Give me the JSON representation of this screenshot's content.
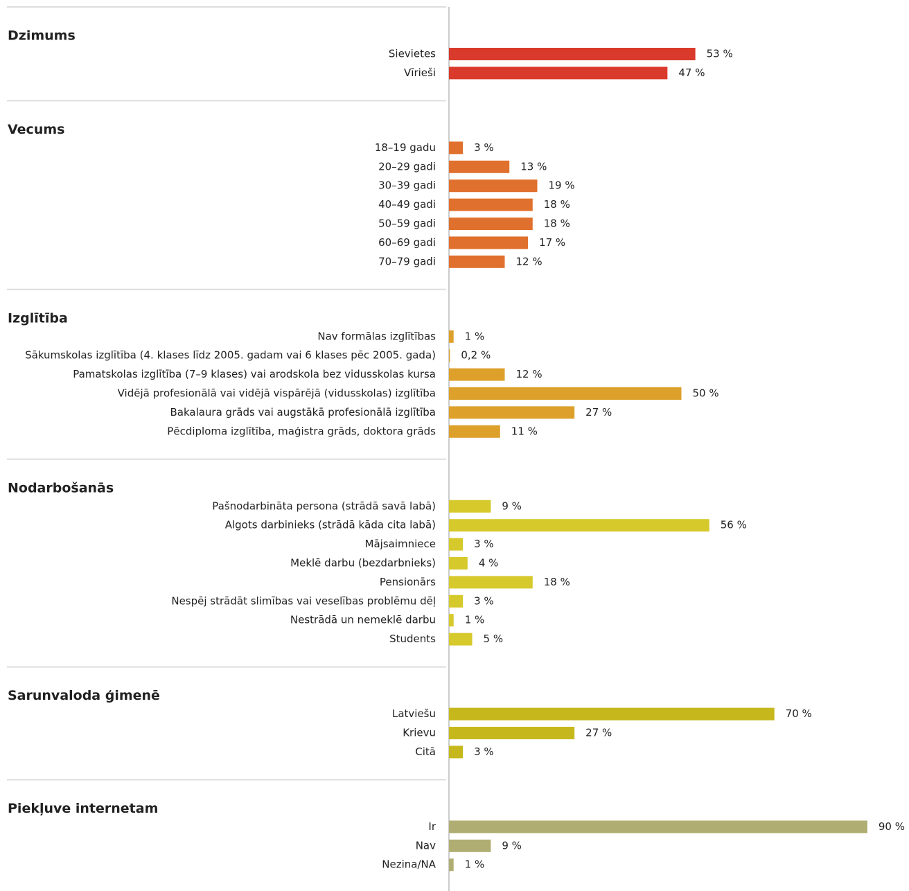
{
  "chart_data": [
    {
      "type": "bar",
      "title": "Dzimums",
      "color": "#d93a2b",
      "categories": [
        "Sievietes",
        "Vīrieši"
      ],
      "values": [
        53,
        47
      ],
      "value_labels": [
        "53 %",
        "47 %"
      ]
    },
    {
      "type": "bar",
      "title": "Vecums",
      "color": "#e0702d",
      "categories": [
        "18–19 gadu",
        "20–29 gadi",
        "30–39 gadi",
        "40–49 gadi",
        "50–59 gadi",
        "60–69 gadi",
        "70–79 gadi"
      ],
      "values": [
        3,
        13,
        19,
        18,
        18,
        17,
        12
      ],
      "value_labels": [
        "3 %",
        "13 %",
        "19 %",
        "18 %",
        "18 %",
        "17 %",
        "12 %"
      ]
    },
    {
      "type": "bar",
      "title": "Izglītība",
      "color": "#dca02b",
      "categories": [
        "Nav formālas izglītības",
        "Sākumskolas izglītība (4. klases līdz 2005. gadam vai 6 klases pēc 2005. gada)",
        "Pamatskolas izglītība (7–9 klases) vai arodskola bez vidusskolas kursa",
        "Vidējā profesionālā vai vidējā vispārējā (vidusskolas) izglītība",
        "Bakalaura grāds vai augstākā profesionālā izglītība",
        "Pēcdiploma izglītība, maģistra grāds, doktora grāds"
      ],
      "values": [
        1,
        0.2,
        12,
        50,
        27,
        11
      ],
      "value_labels": [
        "1 %",
        "0,2 %",
        "12 %",
        "50 %",
        "27 %",
        "11 %"
      ]
    },
    {
      "type": "bar",
      "title": "Nodarbošanās",
      "color": "#d6c92b",
      "categories": [
        "Pašnodarbināta persona (strādā savā labā)",
        "Algots darbinieks (strādā kāda cita labā)",
        "Mājsaimniece",
        "Meklē darbu (bezdarbnieks)",
        "Pensionārs",
        "Nespēj strādāt slimības vai veselības problēmu dēļ",
        "Nestrādā un nemeklē darbu",
        "Students"
      ],
      "values": [
        9,
        56,
        3,
        4,
        18,
        3,
        1,
        5
      ],
      "value_labels": [
        "9 %",
        "56 %",
        "3 %",
        "4 %",
        "18 %",
        "3 %",
        "1 %",
        "5 %"
      ]
    },
    {
      "type": "bar",
      "title": "Sarunvaloda ģimenē",
      "color": "#c6b81c",
      "categories": [
        "Latviešu",
        "Krievu",
        "Citā"
      ],
      "values": [
        70,
        27,
        3
      ],
      "value_labels": [
        "70 %",
        "27 %",
        "3 %"
      ]
    },
    {
      "type": "bar",
      "title": "Piekļuve internetam",
      "color": "#b0ad72",
      "categories": [
        "Ir",
        "Nav",
        "Nezina/NA"
      ],
      "values": [
        90,
        9,
        1
      ],
      "value_labels": [
        "90 %",
        "9 %",
        "1 %"
      ]
    }
  ]
}
